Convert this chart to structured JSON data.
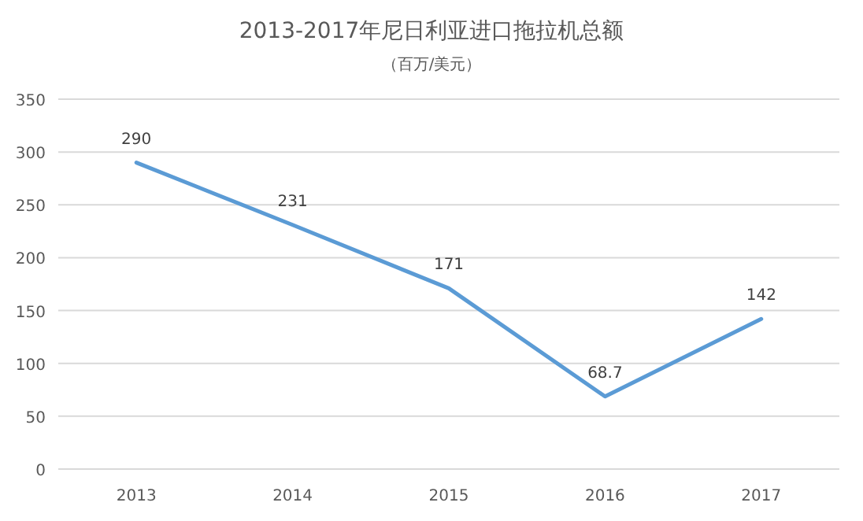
{
  "chart_data": {
    "type": "line",
    "title": "2013-2017年尼日利亚进口拖拉机总额",
    "subtitle": "（百万/美元）",
    "categories": [
      "2013",
      "2014",
      "2015",
      "2016",
      "2017"
    ],
    "values": [
      290,
      231,
      171,
      68.7,
      142
    ],
    "color": "#5b9bd5",
    "ylim": [
      0,
      350
    ],
    "yticks": [
      0,
      50,
      100,
      150,
      200,
      250,
      300,
      350
    ],
    "grid": "y",
    "data_labels": true,
    "legend": false,
    "marker": "none",
    "line_style": "solid"
  }
}
